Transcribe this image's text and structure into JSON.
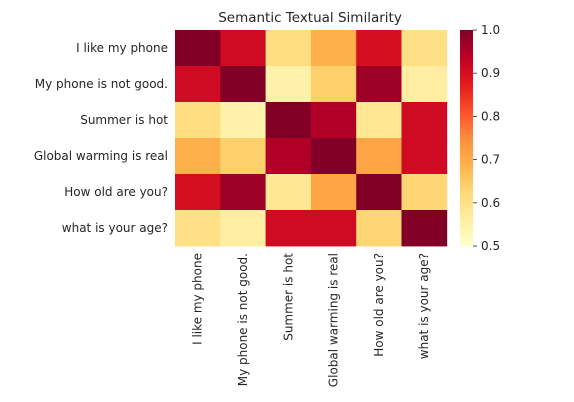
{
  "chart_data": {
    "type": "heatmap",
    "title": "Semantic Textual Similarity",
    "rows": [
      "I like my phone",
      "My phone is not good.",
      "Summer is hot",
      "Global warming is real",
      "How old are you?",
      "what is your age?"
    ],
    "columns": [
      "I like my phone",
      "My phone is not good.",
      "Summer is hot",
      "Global warming is real",
      "How old are you?",
      "what is your age?"
    ],
    "values": [
      [
        1.0,
        0.91,
        0.61,
        0.69,
        0.9,
        0.6
      ],
      [
        0.91,
        1.0,
        0.55,
        0.64,
        0.97,
        0.56
      ],
      [
        0.61,
        0.55,
        1.0,
        0.95,
        0.58,
        0.91
      ],
      [
        0.69,
        0.64,
        0.95,
        1.0,
        0.71,
        0.91
      ],
      [
        0.9,
        0.97,
        0.58,
        0.71,
        1.0,
        0.63
      ],
      [
        0.6,
        0.56,
        0.91,
        0.91,
        0.63,
        1.0
      ]
    ],
    "colorbar": {
      "min": 0.5,
      "max": 1.0,
      "ticks": [
        "0.5",
        "0.6",
        "0.7",
        "0.8",
        "0.9",
        "1.0"
      ],
      "colormap": "YlOrRd",
      "colors": [
        "#ffffcc",
        "#ffeda0",
        "#fed976",
        "#feb24c",
        "#fd8d3c",
        "#fc4e2a",
        "#e31a1c",
        "#bd0026",
        "#800026"
      ]
    },
    "grid": false
  }
}
